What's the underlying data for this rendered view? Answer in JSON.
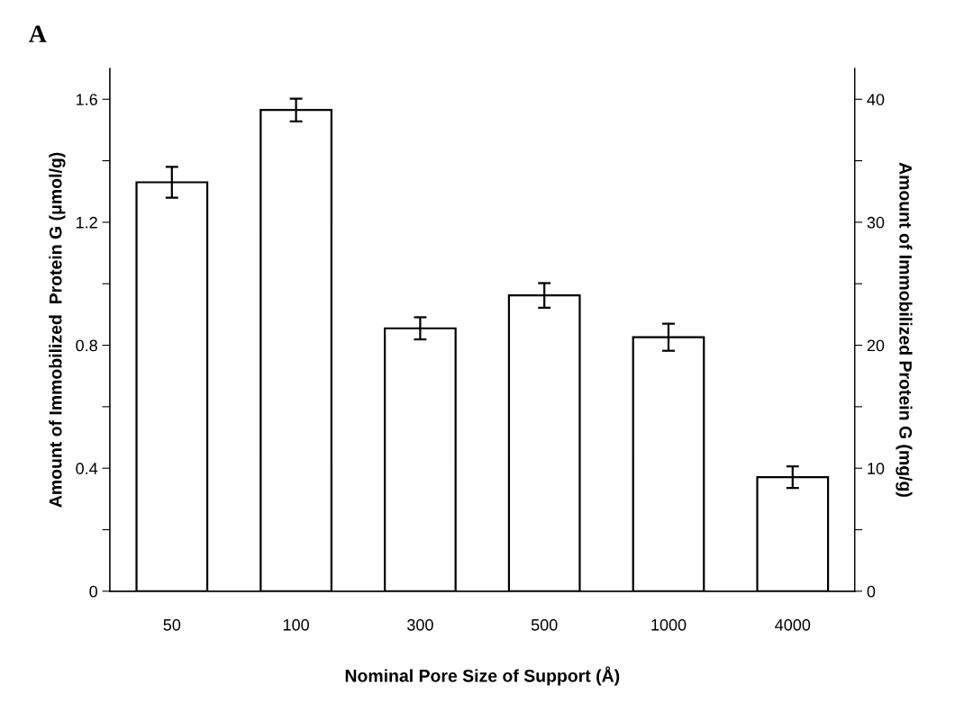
{
  "chart_data": {
    "type": "bar",
    "title": "A",
    "xlabel": "Nominal Pore Size of Support (Å)",
    "ylabel": "Amount of Immobilized  Protein G (μmol/g)",
    "y2label": "Amount of Immobilized Protein G (mg/g)",
    "categories": [
      "50",
      "100",
      "300",
      "500",
      "1000",
      "4000"
    ],
    "series": [
      {
        "color": "#ffffff",
        "values": [
          1.33,
          1.565,
          0.855,
          0.962,
          0.826,
          0.371
        ],
        "errors": [
          0.05,
          0.037,
          0.036,
          0.04,
          0.044,
          0.035
        ]
      }
    ],
    "ylim": [
      0,
      1.7
    ],
    "yticks": [
      0,
      {
        "value": 0.2,
        "label": null
      },
      0.4,
      {
        "value": 0.6,
        "label": null
      },
      0.8,
      {
        "value": 1.0,
        "label": null
      },
      1.2,
      {
        "value": 1.4,
        "label": null
      },
      1.6
    ],
    "y2lim": [
      0,
      42.5
    ],
    "y2ticks": [
      0,
      {
        "value": 5,
        "label": null
      },
      10,
      {
        "value": 15,
        "label": null
      },
      20,
      {
        "value": 25,
        "label": null
      },
      30,
      {
        "value": 35,
        "label": null
      },
      40
    ],
    "grid": false,
    "legend": false
  }
}
